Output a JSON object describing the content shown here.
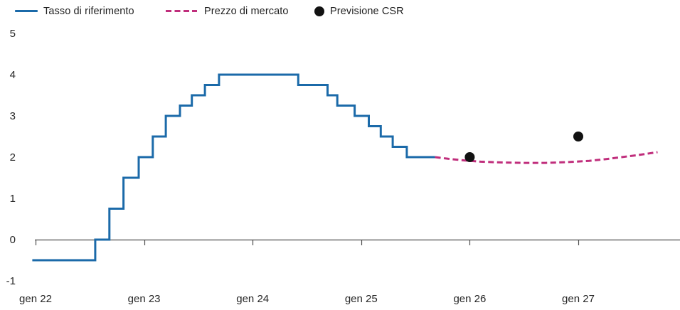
{
  "chart_data": {
    "type": "line",
    "title": "",
    "x_unit": "month-year, gen = January",
    "x_range": [
      2021.97,
      2027.95
    ],
    "y_range": [
      -1,
      5
    ],
    "grid": false,
    "legend_position": "top-left",
    "axis_color": "#4d4d4d",
    "text_color": "#262626",
    "x_ticks": [
      {
        "year": 2022,
        "label": "gen 22"
      },
      {
        "year": 2023,
        "label": "gen 23"
      },
      {
        "year": 2024,
        "label": "gen 24"
      },
      {
        "year": 2025,
        "label": "gen 25"
      },
      {
        "year": 2026,
        "label": "gen 26"
      },
      {
        "year": 2027,
        "label": "gen 27"
      }
    ],
    "y_ticks": [
      5,
      4,
      3,
      2,
      1,
      0,
      -1
    ],
    "legend": [
      {
        "label": "Tasso di riferimento",
        "marker": "solid-line",
        "color": "#1b6aa9"
      },
      {
        "label": "Prezzo di mercato",
        "marker": "dashed-line",
        "color": "#c02e7c"
      },
      {
        "label": "Previsione CSR",
        "marker": "dot",
        "color": "#121212"
      }
    ],
    "series": [
      {
        "name": "Tasso di riferimento",
        "type": "step-line",
        "color": "#1b6aa9",
        "points": [
          [
            2021.97,
            -0.5
          ],
          [
            2022.55,
            -0.5
          ],
          [
            2022.55,
            0.0
          ],
          [
            2022.68,
            0.0
          ],
          [
            2022.68,
            0.75
          ],
          [
            2022.81,
            0.75
          ],
          [
            2022.81,
            1.5
          ],
          [
            2022.95,
            1.5
          ],
          [
            2022.95,
            2.0
          ],
          [
            2023.08,
            2.0
          ],
          [
            2023.08,
            2.5
          ],
          [
            2023.2,
            2.5
          ],
          [
            2023.2,
            3.0
          ],
          [
            2023.33,
            3.0
          ],
          [
            2023.33,
            3.25
          ],
          [
            2023.44,
            3.25
          ],
          [
            2023.44,
            3.5
          ],
          [
            2023.56,
            3.5
          ],
          [
            2023.56,
            3.75
          ],
          [
            2023.69,
            3.75
          ],
          [
            2023.69,
            4.0
          ],
          [
            2024.42,
            4.0
          ],
          [
            2024.42,
            3.75
          ],
          [
            2024.69,
            3.75
          ],
          [
            2024.69,
            3.5
          ],
          [
            2024.78,
            3.5
          ],
          [
            2024.78,
            3.25
          ],
          [
            2024.94,
            3.25
          ],
          [
            2024.94,
            3.0
          ],
          [
            2025.07,
            3.0
          ],
          [
            2025.07,
            2.75
          ],
          [
            2025.18,
            2.75
          ],
          [
            2025.18,
            2.5
          ],
          [
            2025.29,
            2.5
          ],
          [
            2025.29,
            2.25
          ],
          [
            2025.42,
            2.25
          ],
          [
            2025.42,
            2.0
          ],
          [
            2025.68,
            2.0
          ]
        ]
      },
      {
        "name": "Prezzo di mercato",
        "type": "dashed-line",
        "color": "#c02e7c",
        "points": [
          [
            2025.68,
            2.0
          ],
          [
            2025.8,
            1.96
          ],
          [
            2025.95,
            1.92
          ],
          [
            2026.1,
            1.89
          ],
          [
            2026.3,
            1.87
          ],
          [
            2026.5,
            1.86
          ],
          [
            2026.7,
            1.86
          ],
          [
            2026.9,
            1.88
          ],
          [
            2027.1,
            1.91
          ],
          [
            2027.25,
            1.95
          ],
          [
            2027.4,
            2.0
          ],
          [
            2027.55,
            2.05
          ],
          [
            2027.73,
            2.12
          ]
        ]
      },
      {
        "name": "Previsione CSR",
        "type": "scatter",
        "color": "#121212",
        "points": [
          [
            2026.0,
            2.0
          ],
          [
            2027.0,
            2.5
          ]
        ]
      }
    ]
  }
}
